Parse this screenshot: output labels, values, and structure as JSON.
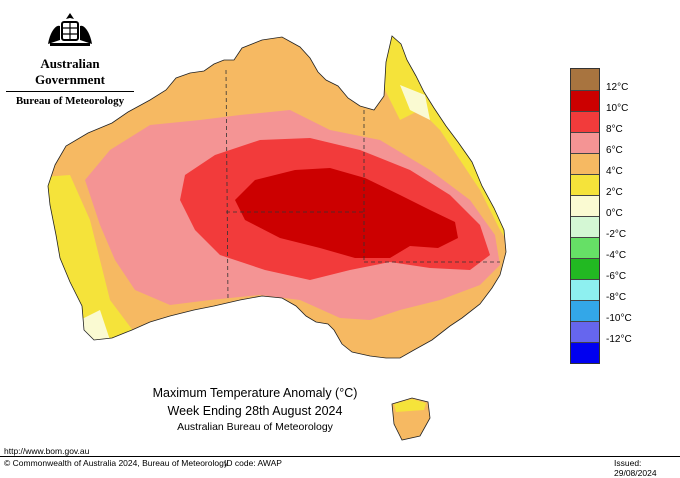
{
  "header": {
    "government": "Australian Government",
    "bureau": "Bureau of Meteorology"
  },
  "title": {
    "line1": "Maximum Temperature Anomaly (°C)",
    "line2": "Week Ending 28th August 2024",
    "line3": "Australian Bureau of Meteorology"
  },
  "legend": {
    "labels": [
      "12°C",
      "10°C",
      "8°C",
      "6°C",
      "4°C",
      "2°C",
      "0°C",
      "-2°C",
      "-4°C",
      "-6°C",
      "-8°C",
      "-10°C",
      "-12°C"
    ],
    "colors": [
      "#a8743f",
      "#cc0000",
      "#f23b3b",
      "#f49494",
      "#f6b962",
      "#f5e33a",
      "#fafad2",
      "#d4f7d4",
      "#66e066",
      "#22b922",
      "#8ef0f0",
      "#33a7e8",
      "#6666ee",
      "#0000f0"
    ]
  },
  "footer": {
    "url": "http://www.bom.gov.au",
    "copyright": "© Commonwealth of Australia 2024, Bureau of Meteorology",
    "id_code": "ID code: AWAP",
    "issued": "Issued: 29/08/2024"
  }
}
